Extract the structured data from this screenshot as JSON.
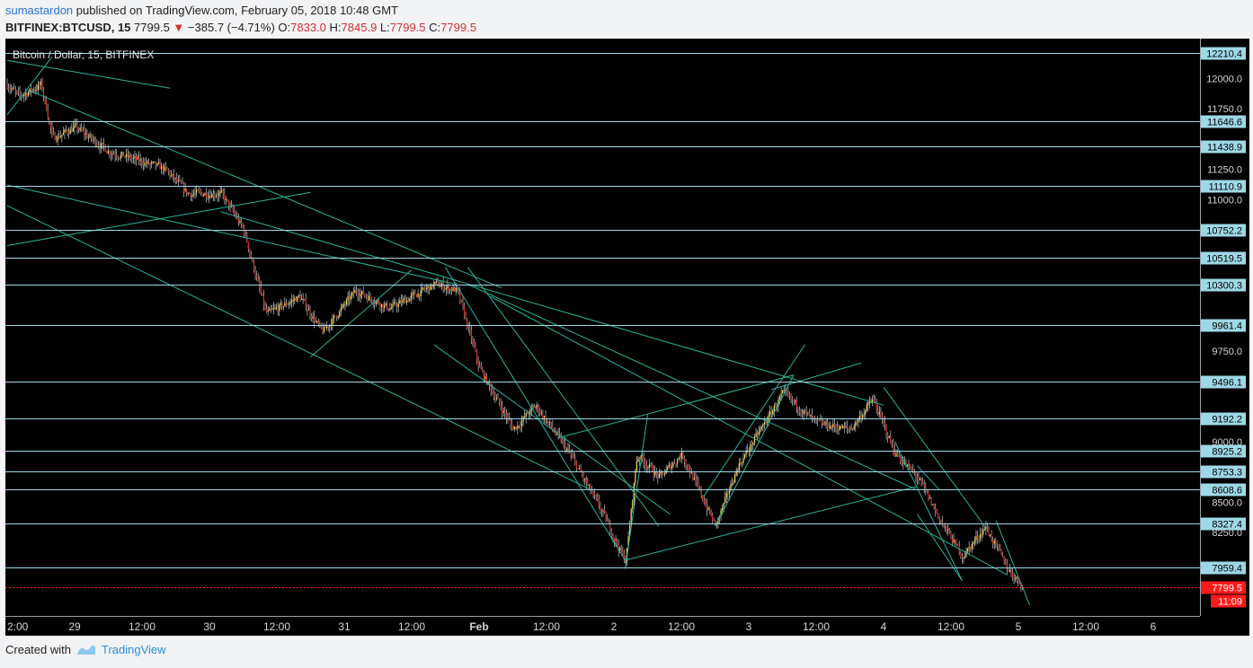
{
  "header": {
    "author": "sumastardon",
    "published_text": "published on TradingView.com, February 05, 2018 10:48 GMT",
    "symbol": "BITFINEX:BTCUSD, 15",
    "last": "7799.5",
    "change": "−385.7 (−4.71%)",
    "o_label": "O:",
    "o_value": "7833.0",
    "h_label": "H:",
    "h_value": "7845.9",
    "l_label": "L:",
    "l_value": "7799.5",
    "c_label": "C:",
    "c_value": "7799.5"
  },
  "footer": {
    "created_with": "Created with",
    "brand": "TradingView"
  },
  "colors": {
    "background": "#000000",
    "up": "#f4e04d",
    "down": "#d62e2e",
    "wick": "#c8c8c8",
    "trend": "#2bb39a",
    "level": "#9ed8e6",
    "level_label_bg": "#9ed8e6",
    "last_price": "#ff1a1a"
  },
  "chart_data": {
    "type": "candlestick",
    "title": "Bitcoin / Dollar, 15, BITFINEX",
    "xlabel": "",
    "ylabel": "",
    "ylim": [
      7560,
      12330
    ],
    "y_ticks": [
      12000,
      11750,
      11250,
      11000,
      9750,
      9000,
      8500,
      8250
    ],
    "x_ticks": [
      "2:00",
      "29",
      "12:00",
      "30",
      "12:00",
      "31",
      "12:00",
      "Feb",
      "12:00",
      "2",
      "12:00",
      "3",
      "12:00",
      "4",
      "12:00",
      "5",
      "12:00",
      "6"
    ],
    "price_levels": [
      12210.4,
      11646.6,
      11438.9,
      11110.9,
      10752.2,
      10519.5,
      10300.3,
      9961.4,
      9496.1,
      9192.2,
      8925.2,
      8753.3,
      8608.6,
      8327.4,
      7959.4
    ],
    "last_price": 7799.5,
    "countdown": "11:09",
    "price_path": [
      [
        "Jan 28 22:00",
        11950
      ],
      [
        "Jan 29 00:00",
        11850
      ],
      [
        "Jan 29 04:00",
        11950
      ],
      [
        "Jan 29 06:00",
        11500
      ],
      [
        "Jan 29 10:00",
        11600
      ],
      [
        "Jan 29 16:00",
        11400
      ],
      [
        "Jan 30 02:00",
        11250
      ],
      [
        "Jan 30 06:00",
        11050
      ],
      [
        "Jan 30 12:00",
        11050
      ],
      [
        "Jan 30 16:00",
        10750
      ],
      [
        "Jan 30 20:00",
        10050
      ],
      [
        "Jan 31 02:00",
        10200
      ],
      [
        "Jan 31 06:00",
        9900
      ],
      [
        "Jan 31 12:00",
        10250
      ],
      [
        "Jan 31 18:00",
        10100
      ],
      [
        "Feb 01 02:00",
        10300
      ],
      [
        "Feb 01 06:00",
        10250
      ],
      [
        "Feb 01 10:00",
        9600
      ],
      [
        "Feb 01 16:00",
        9100
      ],
      [
        "Feb 01 20:00",
        9300
      ],
      [
        "Feb 02 02:00",
        8900
      ],
      [
        "Feb 02 08:00",
        8400
      ],
      [
        "Feb 02 12:00",
        8000
      ],
      [
        "Feb 02 14:00",
        8900
      ],
      [
        "Feb 02 18:00",
        8700
      ],
      [
        "Feb 02 22:00",
        8900
      ],
      [
        "Feb 03 04:00",
        8300
      ],
      [
        "Feb 03 08:00",
        8800
      ],
      [
        "Feb 03 12:00",
        9100
      ],
      [
        "Feb 03 16:00",
        9400
      ],
      [
        "Feb 03 22:00",
        9150
      ],
      [
        "Feb 04 04:00",
        9100
      ],
      [
        "Feb 04 08:00",
        9350
      ],
      [
        "Feb 04 12:00",
        8900
      ],
      [
        "Feb 04 16:00",
        8700
      ],
      [
        "Feb 04 20:00",
        8350
      ],
      [
        "Feb 05 00:00",
        8050
      ],
      [
        "Feb 05 04:00",
        8300
      ],
      [
        "Feb 05 08:00",
        7950
      ],
      [
        "Feb 05 10:45",
        7799.5
      ]
    ]
  }
}
